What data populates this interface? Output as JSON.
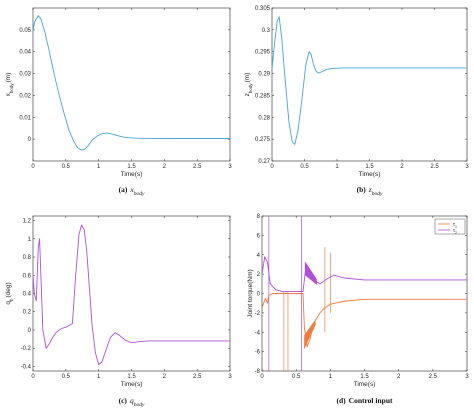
{
  "chart_data": [
    {
      "type": "line",
      "id": "a",
      "caption_label": "(a)",
      "caption_math": "x",
      "caption_sub": "body",
      "ylabel_main": "x",
      "ylabel_sub": "body",
      "ylabel_unit": "(m)",
      "xlabel": "Time(s)",
      "xlim": [
        0,
        3
      ],
      "ylim": [
        -0.01,
        0.06
      ],
      "xticks": [
        "0",
        "0.5",
        "1",
        "1.5",
        "2",
        "2.5",
        "3"
      ],
      "yticks": [
        "0",
        "0.01",
        "0.02",
        "0.03",
        "0.04",
        "0.05"
      ],
      "grid": false,
      "series": [
        {
          "color": "#4aa3d6",
          "x": [
            0,
            0.03,
            0.08,
            0.12,
            0.18,
            0.25,
            0.32,
            0.4,
            0.48,
            0.55,
            0.62,
            0.68,
            0.74,
            0.78,
            0.84,
            0.9,
            0.98,
            1.05,
            1.12,
            1.2,
            1.3,
            1.4,
            1.6,
            2.0,
            2.5,
            3.0
          ],
          "y": [
            0.05,
            0.054,
            0.0565,
            0.055,
            0.049,
            0.04,
            0.03,
            0.02,
            0.011,
            0.004,
            -0.001,
            -0.004,
            -0.005,
            -0.0048,
            -0.003,
            -0.0005,
            0.0015,
            0.0025,
            0.0028,
            0.0024,
            0.0015,
            0.0008,
            0.0004,
            0.0003,
            0.0003,
            0.0003
          ]
        }
      ]
    },
    {
      "type": "line",
      "id": "b",
      "caption_label": "(b)",
      "caption_math": "z",
      "caption_sub": "body",
      "ylabel_main": "z",
      "ylabel_sub": "body",
      "ylabel_unit": "(m)",
      "xlabel": "Time(s)",
      "xlim": [
        0,
        3
      ],
      "ylim": [
        0.27,
        0.305
      ],
      "xticks": [
        "0",
        "0.5",
        "1",
        "1.5",
        "2",
        "2.5",
        "3"
      ],
      "yticks": [
        "0.27",
        "0.275",
        "0.28",
        "0.285",
        "0.29",
        "0.295",
        "0.3",
        "0.305"
      ],
      "grid": false,
      "series": [
        {
          "color": "#4aa3d6",
          "x": [
            0,
            0.04,
            0.08,
            0.11,
            0.15,
            0.2,
            0.26,
            0.31,
            0.35,
            0.4,
            0.46,
            0.52,
            0.57,
            0.6,
            0.64,
            0.68,
            0.72,
            0.78,
            0.85,
            0.95,
            1.1,
            1.4,
            2.0,
            3.0
          ],
          "y": [
            0.291,
            0.297,
            0.302,
            0.303,
            0.298,
            0.289,
            0.279,
            0.2745,
            0.2738,
            0.277,
            0.284,
            0.292,
            0.295,
            0.2945,
            0.292,
            0.2905,
            0.2901,
            0.2905,
            0.291,
            0.2912,
            0.2913,
            0.2913,
            0.2913,
            0.2913
          ]
        }
      ]
    },
    {
      "type": "line",
      "id": "c",
      "caption_label": "(c)",
      "caption_math": "q",
      "caption_sub": "body",
      "ylabel_main": "q",
      "ylabel_sub": "b",
      "ylabel_unit": "(deg)",
      "xlabel": "Time(s)",
      "xlim": [
        0,
        3
      ],
      "ylim": [
        -0.45,
        1.25
      ],
      "xticks": [
        "0",
        "0.5",
        "1",
        "1.5",
        "2",
        "2.5",
        "3"
      ],
      "yticks": [
        "-0.4",
        "-0.2",
        "0",
        "0.2",
        "0.4",
        "0.6",
        "0.8",
        "1",
        "1.2"
      ],
      "grid": false,
      "series": [
        {
          "color": "#b04fd9",
          "x": [
            0,
            0.02,
            0.05,
            0.08,
            0.1,
            0.12,
            0.15,
            0.2,
            0.25,
            0.3,
            0.35,
            0.4,
            0.45,
            0.5,
            0.55,
            0.6,
            0.6,
            0.65,
            0.7,
            0.74,
            0.78,
            0.82,
            0.86,
            0.9,
            0.95,
            1.0,
            1.05,
            1.12,
            1.18,
            1.25,
            1.32,
            1.4,
            1.5,
            1.6,
            1.75,
            2.0,
            2.5,
            3.0
          ],
          "y": [
            0.6,
            0.4,
            0.32,
            0.9,
            1.0,
            0.6,
            0.0,
            -0.2,
            -0.15,
            -0.08,
            -0.03,
            0.0,
            0.02,
            0.03,
            0.05,
            0.07,
            0.07,
            0.6,
            1.05,
            1.15,
            1.1,
            0.85,
            0.45,
            0.05,
            -0.25,
            -0.38,
            -0.35,
            -0.2,
            -0.08,
            -0.03,
            -0.06,
            -0.11,
            -0.14,
            -0.13,
            -0.12,
            -0.12,
            -0.12,
            -0.12
          ]
        }
      ]
    },
    {
      "type": "line",
      "id": "d",
      "caption_label": "(d)",
      "caption_text": "Control input",
      "ylabel": "Joint torque(Nm)",
      "xlabel": "Time(s)",
      "xlim": [
        0,
        3
      ],
      "ylim": [
        -8,
        8
      ],
      "xticks": [
        "0",
        "0.5",
        "1",
        "1.5",
        "2",
        "2.5",
        "3"
      ],
      "yticks": [
        "-8",
        "-6",
        "-4",
        "-2",
        "0",
        "2",
        "4",
        "6",
        "8"
      ],
      "grid": false,
      "legend_position": "top-right",
      "series": [
        {
          "name": "τ",
          "name_sub": "1",
          "color": "#f07b3f",
          "x": [
            0,
            0.05,
            0.08,
            0.1,
            0.15,
            0.2,
            0.3,
            0.4,
            0.5,
            0.6,
            0.62,
            0.66,
            0.7,
            0.74,
            0.78,
            0.85,
            0.9,
            1.0,
            1.2,
            1.5,
            2.0,
            3.0
          ],
          "y": [
            -1.5,
            -0.5,
            -1.0,
            -0.2,
            0.0,
            0.0,
            0.0,
            0.0,
            0.0,
            0.0,
            -3.5,
            -5.5,
            -4.8,
            -3.6,
            -2.8,
            -2.0,
            -1.6,
            -1.1,
            -0.8,
            -0.6,
            -0.6,
            -0.6
          ]
        },
        {
          "name": "τ",
          "name_sub": "2",
          "color": "#b04fd9",
          "x": [
            0,
            0.04,
            0.08,
            0.12,
            0.2,
            0.3,
            0.4,
            0.5,
            0.6,
            0.63,
            0.67,
            0.71,
            0.75,
            0.8,
            0.85,
            0.95,
            1.05,
            1.2,
            1.5,
            2.0,
            3.0
          ],
          "y": [
            2.0,
            3.8,
            3.2,
            1.0,
            0.4,
            0.2,
            0.2,
            0.2,
            0.2,
            2.0,
            2.8,
            2.2,
            1.6,
            1.2,
            1.0,
            1.5,
            1.9,
            1.6,
            1.4,
            1.4,
            1.4
          ]
        }
      ]
    }
  ]
}
